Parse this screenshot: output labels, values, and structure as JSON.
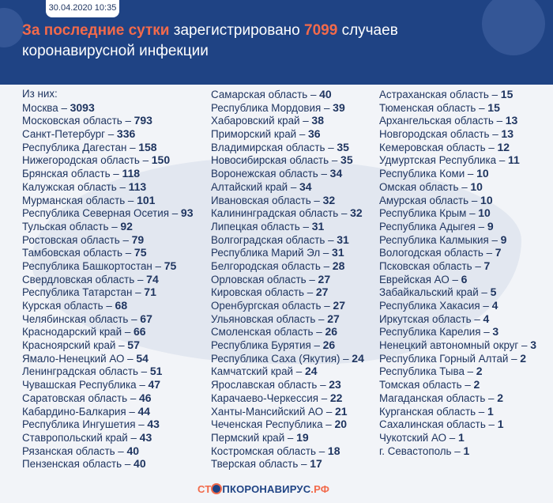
{
  "header": {
    "date": "30.04.2020 10:35",
    "title_highlight": "За последние сутки",
    "title_mid": " зарегистрировано ",
    "count": "7099",
    "title_end": " случаев коронавирусной инфекции"
  },
  "intro": "Из них:",
  "columns": [
    [
      [
        "Москва",
        "3093"
      ],
      [
        "Московская область",
        "793"
      ],
      [
        "Санкт-Петербург",
        "336"
      ],
      [
        "Республика Дагестан",
        "158"
      ],
      [
        "Нижегородская область",
        "150"
      ],
      [
        "Брянская область",
        "118"
      ],
      [
        "Калужская область",
        "113"
      ],
      [
        "Мурманская область",
        "101"
      ],
      [
        "Республика Северная Осетия",
        "93"
      ],
      [
        "Тульская область",
        "92"
      ],
      [
        "Ростовская область",
        "79"
      ],
      [
        "Тамбовская область",
        "75"
      ],
      [
        "Республика Башкортостан",
        "75"
      ],
      [
        "Свердловская область",
        "74"
      ],
      [
        "Республика Татарстан",
        "71"
      ],
      [
        "Курская область",
        "68"
      ],
      [
        "Челябинская область",
        "67"
      ],
      [
        "Краснодарский край",
        "66"
      ],
      [
        "Красноярский край",
        "57"
      ],
      [
        "Ямало-Ненецкий АО",
        "54"
      ],
      [
        "Ленинградская область",
        "51"
      ],
      [
        "Чувашская Республика",
        "47"
      ],
      [
        "Саратовская область",
        "46"
      ],
      [
        "Кабардино-Балкария",
        "44"
      ],
      [
        "Республика Ингушетия",
        "43"
      ],
      [
        "Ставропольский край",
        "43"
      ],
      [
        "Рязанская область",
        "40"
      ],
      [
        "Пензенская область",
        "40"
      ]
    ],
    [
      [
        "Самарская область",
        "40"
      ],
      [
        "Республика Мордовия",
        "39"
      ],
      [
        "Хабаровский край",
        "38"
      ],
      [
        "Приморский край",
        "36"
      ],
      [
        "Владимирская область",
        "35"
      ],
      [
        "Новосибирская область",
        "35"
      ],
      [
        "Воронежская область",
        "34"
      ],
      [
        "Алтайский край",
        "34"
      ],
      [
        "Ивановская область",
        "32"
      ],
      [
        "Калининградская область",
        "32"
      ],
      [
        "Липецкая область",
        "31"
      ],
      [
        "Волгоградская область",
        "31"
      ],
      [
        "Республика Марий Эл",
        "31"
      ],
      [
        "Белгородская область",
        "28"
      ],
      [
        "Орловская область",
        "27"
      ],
      [
        "Кировская область",
        "27"
      ],
      [
        "Оренбургская область",
        "27"
      ],
      [
        "Ульяновская область",
        "27"
      ],
      [
        "Смоленская область",
        "26"
      ],
      [
        "Республика Бурятия",
        "26"
      ],
      [
        "Республика Саха (Якутия)",
        "24"
      ],
      [
        "Камчатский край",
        "24"
      ],
      [
        "Ярославская область",
        "23"
      ],
      [
        "Карачаево-Черкессия",
        "22"
      ],
      [
        "Ханты-Мансийский АО",
        "21"
      ],
      [
        "Чеченская Республика",
        "20"
      ],
      [
        "Пермский край",
        "19"
      ],
      [
        "Костромская область",
        "18"
      ],
      [
        "Тверская область",
        "17"
      ]
    ],
    [
      [
        "Астраханская область",
        "15"
      ],
      [
        "Тюменская область",
        "15"
      ],
      [
        "Архангельская область",
        "13"
      ],
      [
        "Новгородская область",
        "13"
      ],
      [
        "Кемеровская область",
        "12"
      ],
      [
        "Удмуртская Республика",
        "11"
      ],
      [
        "Республика Коми",
        "10"
      ],
      [
        "Омская область",
        "10"
      ],
      [
        "Амурская область",
        "10"
      ],
      [
        "Республика Крым",
        "10"
      ],
      [
        "Республика Адыгея",
        "9"
      ],
      [
        "Республика Калмыкия",
        "9"
      ],
      [
        "Вологодская область",
        "7"
      ],
      [
        "Псковская область",
        "7"
      ],
      [
        "Еврейская АО",
        "6"
      ],
      [
        "Забайкальский край",
        "5"
      ],
      [
        "Республика Хакасия",
        "4"
      ],
      [
        "Иркутская область",
        "4"
      ],
      [
        "Республика Карелия",
        "3"
      ],
      [
        "Ненецкий автономный округ",
        "3"
      ],
      [
        "Республика Горный Алтай",
        "2"
      ],
      [
        "Республика Тыва",
        "2"
      ],
      [
        "Томская область",
        "2"
      ],
      [
        "Магаданская область",
        "2"
      ],
      [
        "Курганская область",
        "1"
      ],
      [
        "Сахалинская область",
        "1"
      ],
      [
        "Чукотский АО",
        "1"
      ],
      [
        "г. Севастополь",
        "1"
      ]
    ]
  ],
  "footer": {
    "logo_a": "СТ",
    "logo_b": "ПКОРОНАВИРУС",
    "logo_c": ".РФ"
  }
}
